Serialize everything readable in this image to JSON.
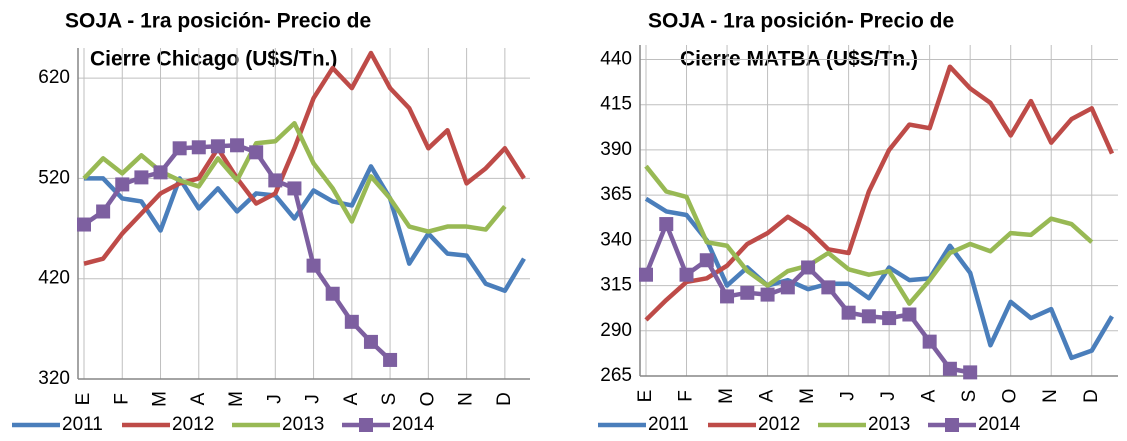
{
  "chart_data": [
    {
      "type": "line",
      "title": [
        "SOJA - 1ra posición- Precio de",
        "Cierre Chicago  (U$S/Tn.)"
      ],
      "categories": [
        "E",
        null,
        "F",
        null,
        "M",
        null,
        "A",
        null,
        "M",
        null,
        "J",
        null,
        "J",
        null,
        "A",
        null,
        "S",
        null,
        "O",
        null,
        "N",
        null,
        "D",
        null
      ],
      "ylim": [
        320,
        650
      ],
      "yticks": [
        320,
        420,
        520,
        620
      ],
      "grid": true,
      "series": [
        {
          "name": "2011",
          "color": "#4a7ebb",
          "values": [
            520,
            520,
            500,
            497,
            468,
            520,
            490,
            510,
            487,
            505,
            503,
            480,
            508,
            497,
            493,
            532,
            500,
            435,
            465,
            445,
            443,
            415,
            408,
            440
          ]
        },
        {
          "name": "2012",
          "color": "#be4b48",
          "values": [
            435,
            440,
            465,
            485,
            505,
            515,
            520,
            550,
            520,
            495,
            505,
            550,
            600,
            630,
            610,
            645,
            610,
            590,
            550,
            568,
            515,
            530,
            550,
            520
          ]
        },
        {
          "name": "2013",
          "color": "#98b954",
          "values": [
            520,
            540,
            525,
            543,
            527,
            518,
            512,
            540,
            518,
            555,
            557,
            575,
            535,
            510,
            477,
            522,
            500,
            472,
            467,
            472,
            472,
            469,
            492,
            null
          ]
        },
        {
          "name": "2014",
          "color": "#7d5fa0",
          "marker": "square",
          "values": [
            474,
            487,
            514,
            521,
            526,
            550,
            551,
            552,
            553,
            546,
            518,
            510,
            433,
            405,
            377,
            357,
            339,
            null,
            null,
            null,
            null,
            null,
            null,
            null
          ]
        }
      ]
    },
    {
      "type": "line",
      "title": [
        "SOJA - 1ra posición- Precio de",
        "Cierre MATBA (U$S/Tn.)"
      ],
      "categories": [
        "E",
        null,
        "F",
        null,
        "M",
        null,
        "A",
        null,
        "M",
        null,
        "J",
        null,
        "J",
        null,
        "A",
        null,
        "S",
        null,
        "O",
        null,
        "N",
        null,
        "D",
        null
      ],
      "ylim": [
        265,
        448
      ],
      "yticks": [
        265,
        290,
        315,
        340,
        365,
        390,
        415,
        440
      ],
      "grid": true,
      "series": [
        {
          "name": "2011",
          "color": "#4a7ebb",
          "values": [
            363,
            356,
            354,
            340,
            315,
            325,
            315,
            318,
            313,
            316,
            316,
            308,
            325,
            318,
            319,
            337,
            322,
            282,
            306,
            297,
            302,
            275,
            279,
            298
          ]
        },
        {
          "name": "2012",
          "color": "#be4b48",
          "values": [
            296,
            307,
            317,
            319,
            326,
            338,
            344,
            353,
            346,
            335,
            333,
            367,
            390,
            404,
            402,
            436,
            424,
            416,
            398,
            417,
            394,
            407,
            413,
            388
          ]
        },
        {
          "name": "2013",
          "color": "#98b954",
          "values": [
            381,
            367,
            364,
            339,
            337,
            323,
            315,
            323,
            326,
            333,
            324,
            321,
            323,
            305,
            318,
            333,
            338,
            334,
            344,
            343,
            352,
            349,
            339,
            null
          ]
        },
        {
          "name": "2014",
          "color": "#7d5fa0",
          "marker": "square",
          "values": [
            321,
            349,
            321,
            329,
            309,
            311,
            310,
            314,
            325,
            314,
            300,
            298,
            297,
            299,
            284,
            269,
            267,
            null,
            null,
            null,
            null,
            null,
            null,
            null
          ]
        }
      ]
    }
  ]
}
